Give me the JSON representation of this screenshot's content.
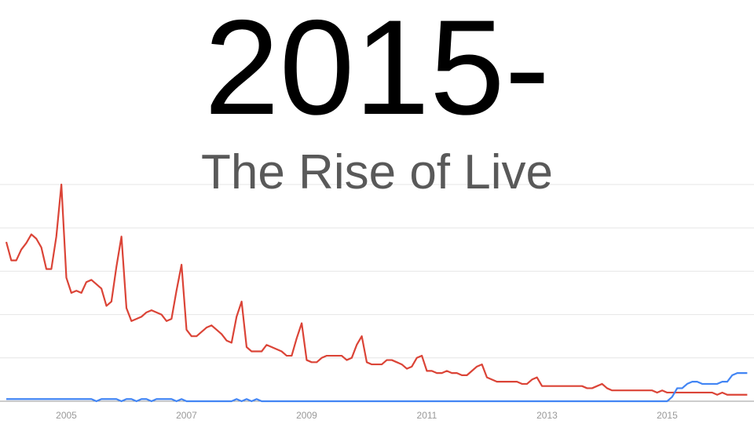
{
  "chart_data": {
    "type": "line",
    "title": "2015-",
    "subtitle": "The Rise of Live",
    "x": [
      2004,
      2004.083,
      2004.167,
      2004.25,
      2004.333,
      2004.417,
      2004.5,
      2004.583,
      2004.667,
      2004.75,
      2004.833,
      2004.917,
      2005,
      2005.083,
      2005.167,
      2005.25,
      2005.333,
      2005.417,
      2005.5,
      2005.583,
      2005.667,
      2005.75,
      2005.833,
      2005.917,
      2006,
      2006.083,
      2006.167,
      2006.25,
      2006.333,
      2006.417,
      2006.5,
      2006.583,
      2006.667,
      2006.75,
      2006.833,
      2006.917,
      2007,
      2007.083,
      2007.167,
      2007.25,
      2007.333,
      2007.417,
      2007.5,
      2007.583,
      2007.667,
      2007.75,
      2007.833,
      2007.917,
      2008,
      2008.083,
      2008.167,
      2008.25,
      2008.333,
      2008.417,
      2008.5,
      2008.583,
      2008.667,
      2008.75,
      2008.833,
      2008.917,
      2009,
      2009.083,
      2009.167,
      2009.25,
      2009.333,
      2009.417,
      2009.5,
      2009.583,
      2009.667,
      2009.75,
      2009.833,
      2009.917,
      2010,
      2010.083,
      2010.167,
      2010.25,
      2010.333,
      2010.417,
      2010.5,
      2010.583,
      2010.667,
      2010.75,
      2010.833,
      2010.917,
      2011,
      2011.083,
      2011.167,
      2011.25,
      2011.333,
      2011.417,
      2011.5,
      2011.583,
      2011.667,
      2011.75,
      2011.833,
      2011.917,
      2012,
      2012.083,
      2012.167,
      2012.25,
      2012.333,
      2012.417,
      2012.5,
      2012.583,
      2012.667,
      2012.75,
      2012.833,
      2012.917,
      2013,
      2013.083,
      2013.167,
      2013.25,
      2013.333,
      2013.417,
      2013.5,
      2013.583,
      2013.667,
      2013.75,
      2013.833,
      2013.917,
      2014,
      2014.083,
      2014.167,
      2014.25,
      2014.333,
      2014.417,
      2014.5,
      2014.583,
      2014.667,
      2014.75,
      2014.833,
      2014.917,
      2015,
      2015.083,
      2015.167,
      2015.25,
      2015.333,
      2015.417,
      2015.5,
      2015.583,
      2015.667,
      2015.75,
      2015.833,
      2015.917,
      2016,
      2016.083,
      2016.167,
      2016.25,
      2016.333
    ],
    "series": [
      {
        "color": "#db4437",
        "values": [
          73.5,
          65,
          65,
          70,
          73,
          77,
          75,
          71,
          61,
          61,
          76,
          100,
          57,
          50,
          51,
          50,
          55,
          56,
          54,
          52,
          44,
          46,
          62,
          76,
          43,
          37,
          38,
          39,
          41,
          42,
          41,
          40,
          37,
          38,
          51,
          63,
          33,
          30,
          30,
          32,
          34,
          35,
          33,
          31,
          28,
          27,
          39,
          46,
          25,
          23,
          23,
          23,
          26,
          25,
          24,
          23,
          21,
          21,
          29,
          36,
          19,
          18,
          18,
          20,
          21,
          21,
          21,
          21,
          19,
          20,
          26,
          30,
          18,
          17,
          17,
          17,
          19,
          19,
          18,
          17,
          15,
          16,
          20,
          21,
          14,
          14,
          13,
          13,
          14,
          13,
          13,
          12,
          12,
          14,
          16,
          17,
          11,
          10,
          9,
          9,
          9,
          9,
          9,
          8,
          8,
          10,
          11,
          7,
          7,
          7,
          7,
          7,
          7,
          7,
          7,
          7,
          6,
          6,
          7,
          8,
          6,
          5,
          5,
          5,
          5,
          5,
          5,
          5,
          5,
          5,
          4,
          5,
          4,
          4,
          4,
          4,
          4,
          4,
          4,
          4,
          4,
          4,
          3,
          4,
          3,
          3,
          3,
          3,
          3
        ]
      },
      {
        "color": "#4285f4",
        "values": [
          1,
          1,
          1,
          1,
          1,
          1,
          1,
          1,
          1,
          1,
          1,
          1,
          1,
          1,
          1,
          1,
          1,
          1,
          0,
          1,
          1,
          1,
          1,
          0,
          1,
          1,
          0,
          1,
          1,
          0,
          1,
          1,
          1,
          1,
          0,
          1,
          0,
          0,
          0,
          0,
          0,
          0,
          0,
          0,
          0,
          0,
          1,
          0,
          1,
          0,
          1,
          0,
          0,
          0,
          0,
          0,
          0,
          0,
          0,
          0,
          0,
          0,
          0,
          0,
          0,
          0,
          0,
          0,
          0,
          0,
          0,
          0,
          0,
          0,
          0,
          0,
          0,
          0,
          0,
          0,
          0,
          0,
          0,
          0,
          0,
          0,
          0,
          0,
          0,
          0,
          0,
          0,
          0,
          0,
          0,
          0,
          0,
          0,
          0,
          0,
          0,
          0,
          0,
          0,
          0,
          0,
          0,
          0,
          0,
          0,
          0,
          0,
          0,
          0,
          0,
          0,
          0,
          0,
          0,
          0,
          0,
          0,
          0,
          0,
          0,
          0,
          0,
          0,
          0,
          0,
          0,
          0,
          0,
          2,
          6,
          6,
          8,
          9,
          9,
          8,
          8,
          8,
          8,
          9,
          9,
          12,
          13,
          13,
          13
        ]
      }
    ],
    "xlim": [
      2004,
      2016.38
    ],
    "xticks": [
      2005,
      2007,
      2009,
      2011,
      2013,
      2015
    ],
    "ylim": [
      0,
      100
    ],
    "yticks": [
      0,
      20,
      40,
      60,
      80,
      100
    ],
    "grid": true
  }
}
